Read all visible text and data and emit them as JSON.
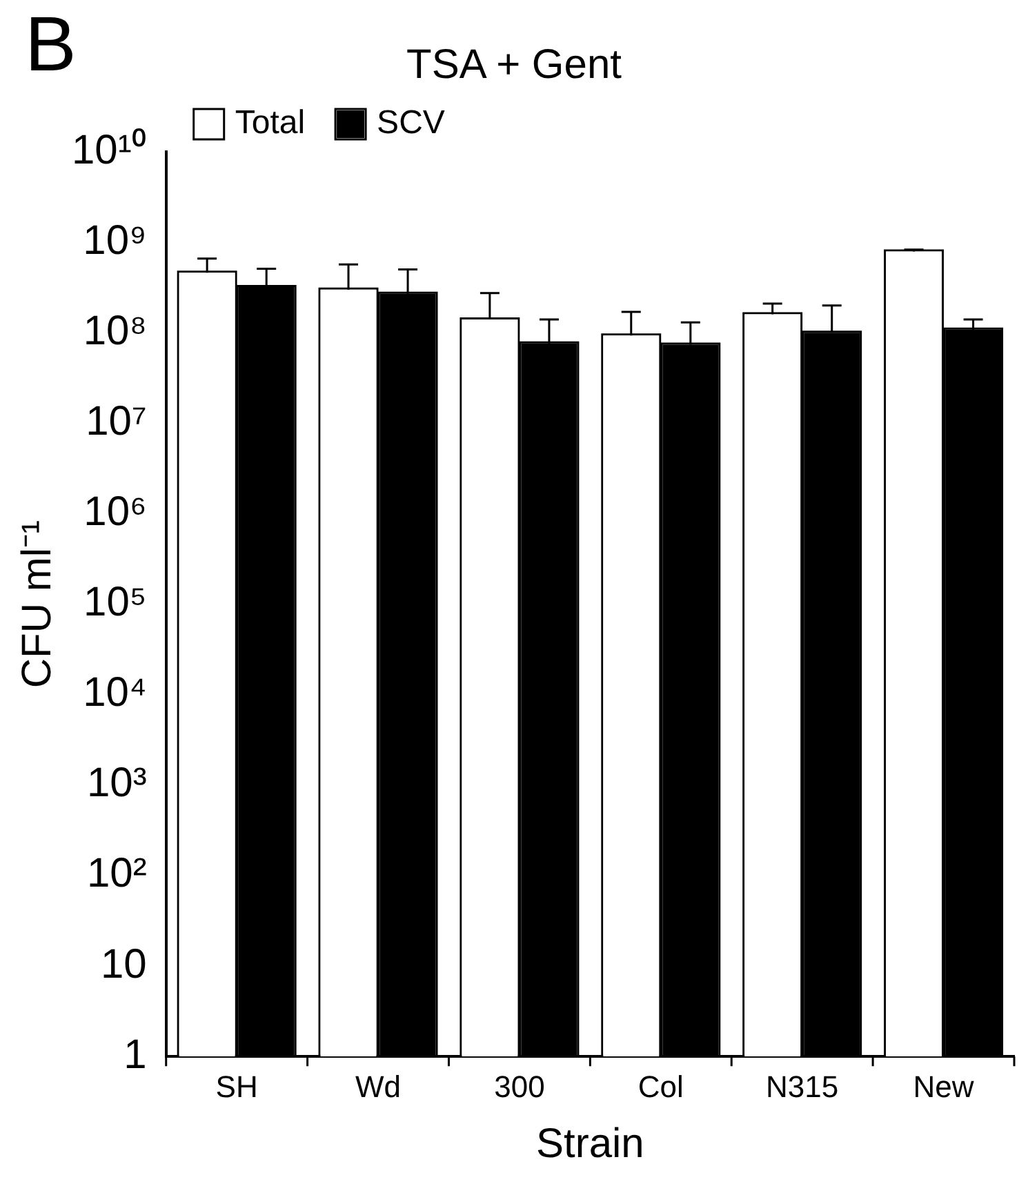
{
  "chart_data": {
    "type": "bar",
    "title": "TSA + Gent",
    "xlabel": "Strain",
    "ylabel": "CFU ml⁻¹",
    "annotations": [
      "B"
    ],
    "categories": [
      "SH",
      "Wd",
      "300",
      "Col",
      "N315",
      "New"
    ],
    "series": [
      {
        "name": "Total",
        "color": "#ffffff",
        "values": [
          460000000.0,
          300000000.0,
          140000000.0,
          93000000.0,
          160000000.0,
          790000000.0
        ],
        "errors": [
          [
            460000000.0,
            660000000.0
          ],
          [
            300000000.0,
            570000000.0
          ],
          [
            140000000.0,
            275000000.0
          ],
          [
            93000000.0,
            170000000.0
          ],
          [
            160000000.0,
            210000000.0
          ],
          [
            790000000.0,
            830000000.0
          ]
        ]
      },
      {
        "name": "SCV",
        "color": "#000000",
        "values": [
          320000000.0,
          270000000.0,
          76000000.0,
          74000000.0,
          100000000.0,
          108000000.0
        ],
        "errors": [
          [
            320000000.0,
            510000000.0
          ],
          [
            270000000.0,
            500000000.0
          ],
          [
            76000000.0,
            140000000.0
          ],
          [
            74000000.0,
            130000000.0
          ],
          [
            100000000.0,
            200000000.0
          ],
          [
            108000000.0,
            140000000.0
          ]
        ]
      }
    ],
    "log": true,
    "ylim": [
      1,
      10000000000.0
    ],
    "yticks": [
      1,
      10,
      {
        "value": 100,
        "label": "10²"
      },
      {
        "value": 1000,
        "label": "10³"
      },
      {
        "value": 10000.0,
        "label": "10⁴"
      },
      {
        "value": 100000.0,
        "label": "10⁵"
      },
      {
        "value": 1000000.0,
        "label": "10⁶"
      },
      {
        "value": 10000000.0,
        "label": "10⁷"
      },
      {
        "value": 100000000.0,
        "label": "10⁸"
      },
      {
        "value": 1000000000.0,
        "label": "10⁹"
      },
      {
        "value": 10000000000.0,
        "label": "10¹⁰"
      }
    ],
    "grid": false,
    "legend": "top left"
  }
}
